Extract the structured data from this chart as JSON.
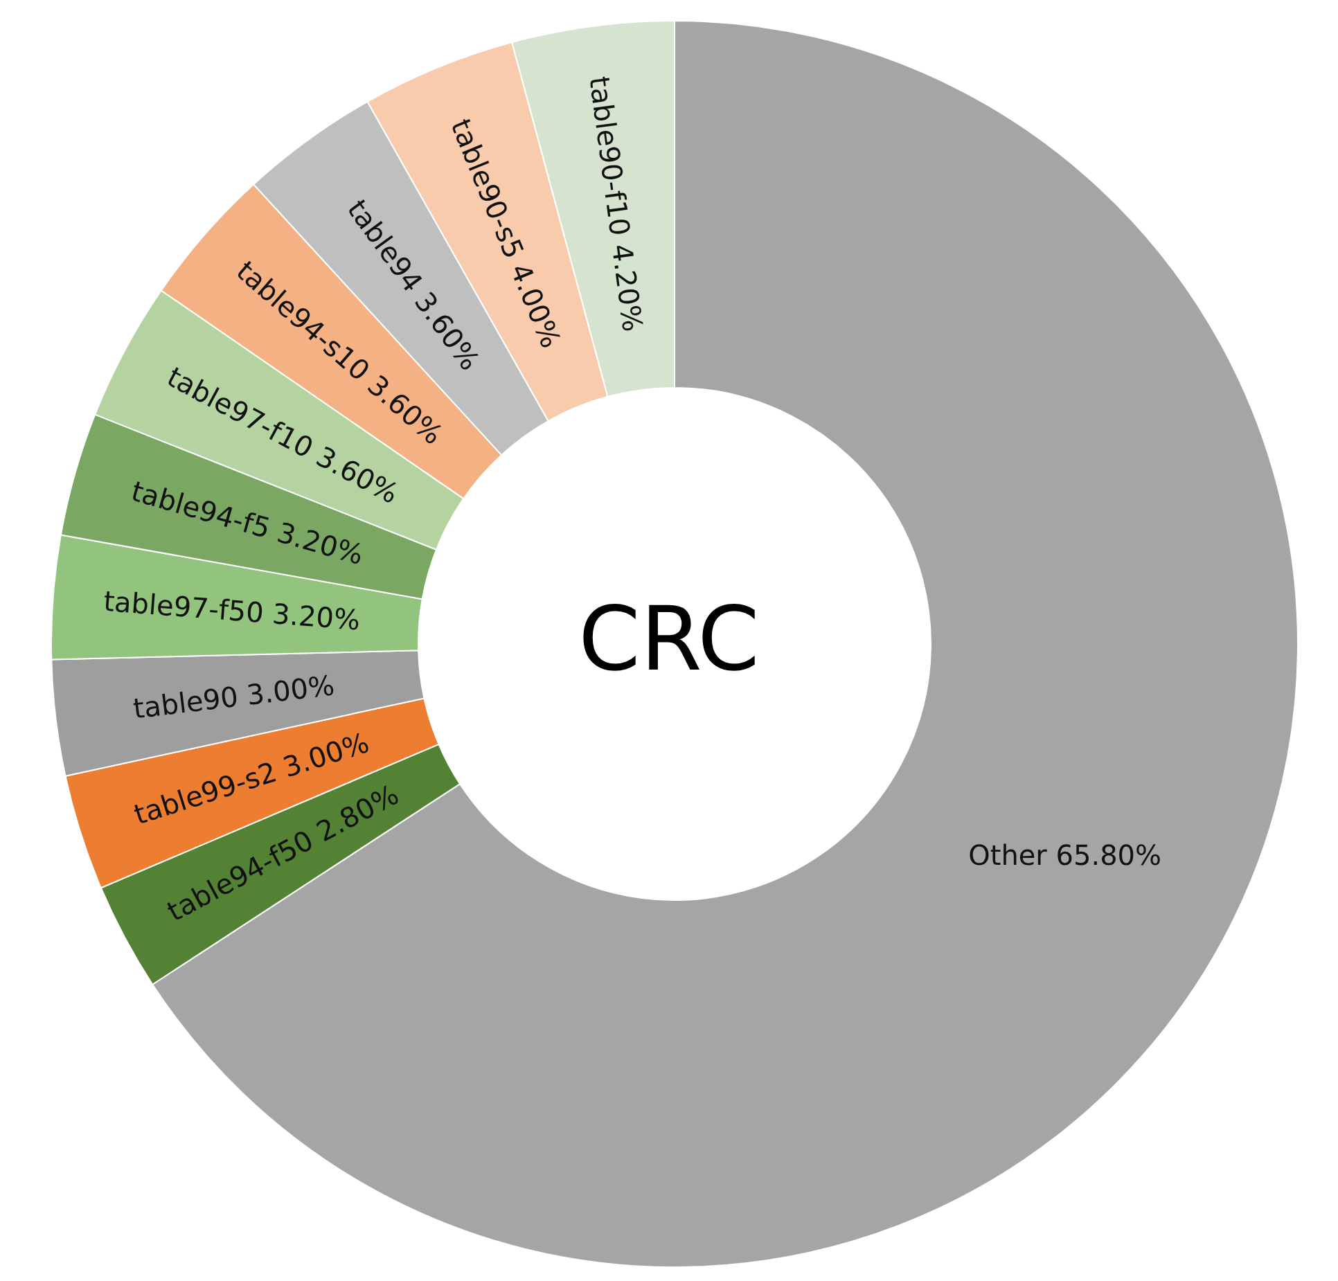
{
  "chart_data": {
    "type": "donut",
    "title": "CRC",
    "categories": [
      "Other",
      "table94-f50",
      "table99-s2",
      "table90",
      "table97-f50",
      "table94-f5",
      "table97-f10",
      "table94-s10",
      "table94",
      "table90-s5",
      "table90-f10"
    ],
    "values": [
      65.8,
      2.8,
      3.0,
      3.0,
      3.2,
      3.2,
      3.6,
      3.6,
      3.6,
      4.0,
      4.2
    ],
    "value_labels": [
      "65.80%",
      "2.80%",
      "3.00%",
      "3.00%",
      "3.20%",
      "3.20%",
      "3.60%",
      "3.60%",
      "3.60%",
      "4.00%",
      "4.20%"
    ],
    "colors": [
      "#a5a5a5",
      "#548235",
      "#ed7d31",
      "#9e9e9e",
      "#93c47d",
      "#7aa862",
      "#b4d3a0",
      "#f4b183",
      "#bfbfbf",
      "#f8cbad",
      "#d5e3cf"
    ]
  }
}
